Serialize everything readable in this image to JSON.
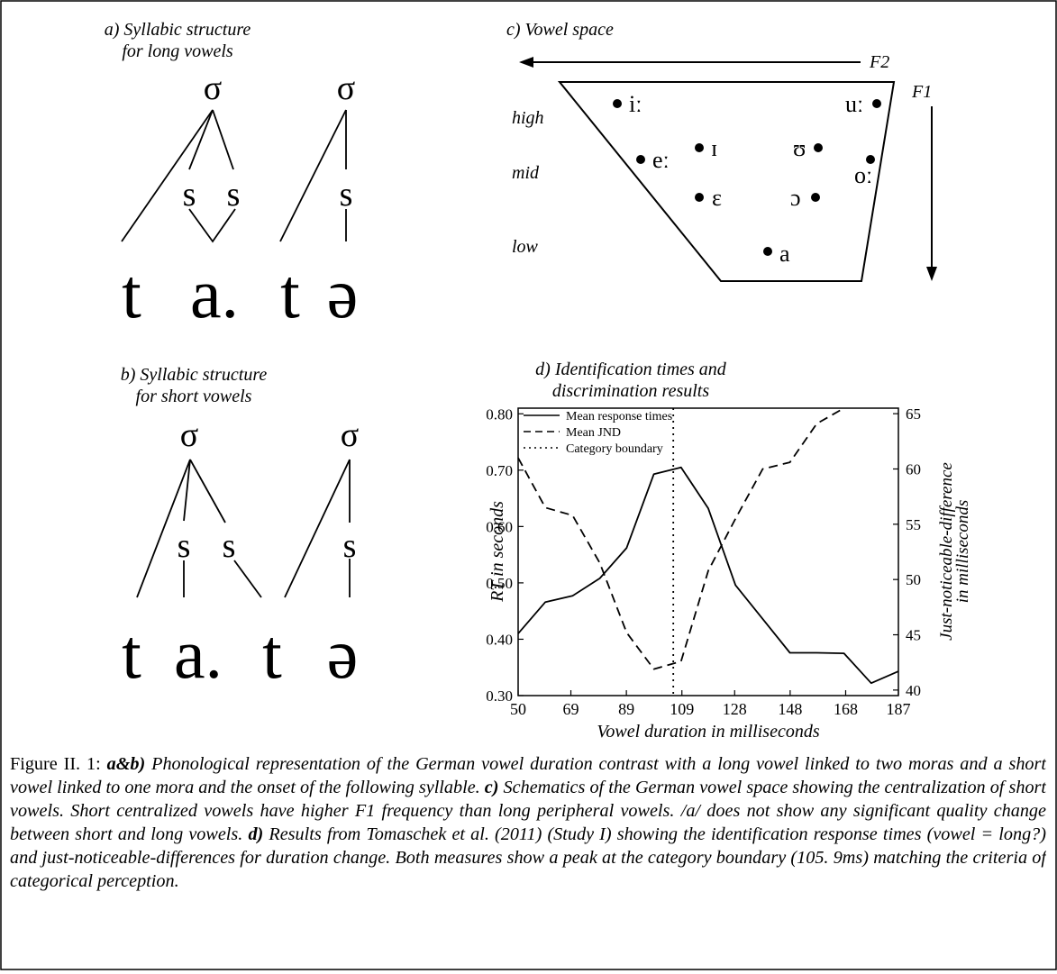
{
  "panel_a": {
    "title_line1": "a) Syllabic structure",
    "title_line2": "for long vowels",
    "sigma": "σ",
    "mora": "s",
    "segments": [
      "t",
      "a.",
      "t",
      "ə"
    ]
  },
  "panel_b": {
    "title_line1": "b) Syllabic structure",
    "title_line2": "for short vowels",
    "sigma": "σ",
    "mora": "s",
    "segments": [
      "t",
      "a.",
      "t",
      "ə"
    ]
  },
  "panel_c": {
    "title": "c) Vowel space",
    "f2_label": "F2",
    "f1_label": "F1",
    "rows": [
      "high",
      "mid",
      "low"
    ],
    "vowels": [
      "iː",
      "uː",
      "ɪ",
      "ʊ",
      "eː",
      "oː",
      "ɛ",
      "ɔ",
      "a"
    ]
  },
  "chart_data": {
    "type": "line",
    "title_line1": "d) Identification times and",
    "title_line2": "discrimination results",
    "xlabel": "Vowel duration in milliseconds",
    "ylabel": "RT in seconds",
    "y2label_line1": "Just-noticeable-difference",
    "y2label_line2": "in milliseconds",
    "x_ticks": [
      "50",
      "69",
      "89",
      "109",
      "128",
      "148",
      "168",
      "187"
    ],
    "y_ticks": [
      "0.30",
      "0.40",
      "0.50",
      "0.60",
      "0.70",
      "0.80"
    ],
    "y2_ticks": [
      "40",
      "45",
      "50",
      "55",
      "60",
      "65"
    ],
    "xlim": [
      50,
      187
    ],
    "ylim": [
      0.3,
      0.81
    ],
    "y2lim": [
      39.5,
      65.5
    ],
    "legend": [
      "Mean response times",
      "Mean JND",
      "Category boundary"
    ],
    "legend_position": "top-left",
    "series": [
      {
        "name": "Mean response times",
        "style": "solid",
        "axis": "left",
        "x": [
          50,
          59.8,
          69.6,
          79.4,
          89.1,
          98.9,
          108.7,
          118.5,
          128.3,
          138.1,
          147.9,
          157.6,
          167.4,
          177.2,
          187
        ],
        "values": [
          0.41,
          0.466,
          0.477,
          0.508,
          0.562,
          0.693,
          0.705,
          0.632,
          0.496,
          0.436,
          0.376,
          0.376,
          0.375,
          0.322,
          0.343
        ]
      },
      {
        "name": "Mean JND",
        "style": "dashed",
        "axis": "right",
        "x": [
          50,
          59.8,
          69.6,
          79.4,
          89.1,
          98.9,
          108.7,
          118.5,
          128.3,
          138.1,
          147.9,
          157.6,
          167.4
        ],
        "values": [
          61,
          56.5,
          55.8,
          51.5,
          45.2,
          41.9,
          42.6,
          50.8,
          55.5,
          60,
          60.6,
          64.1,
          66.6
        ]
      }
    ],
    "category_boundary": 105.9
  },
  "caption": {
    "lead": "Figure II. 1: ",
    "ab_label": "a&b)",
    "ab_text": " Phonological representation of the German vowel duration contrast with a long vowel linked to two moras and a short vowel linked to one mora and the onset of the following syllable. ",
    "c_label": "c)",
    "c_text": " Schematics of the German vowel space showing the centralization of short vowels. Short centralized vowels have higher F1 frequency than long peripheral vowels. /a/ does not show any significant quality change between short and long vowels. ",
    "d_label": "d)",
    "d_text": " Results from Tomaschek et al. (2011) (Study I) showing the identification response times (vowel = long?) and just-noticeable-differences for duration change. Both measures show a peak at the category boundary (105. 9ms) matching the criteria of categorical perception."
  }
}
